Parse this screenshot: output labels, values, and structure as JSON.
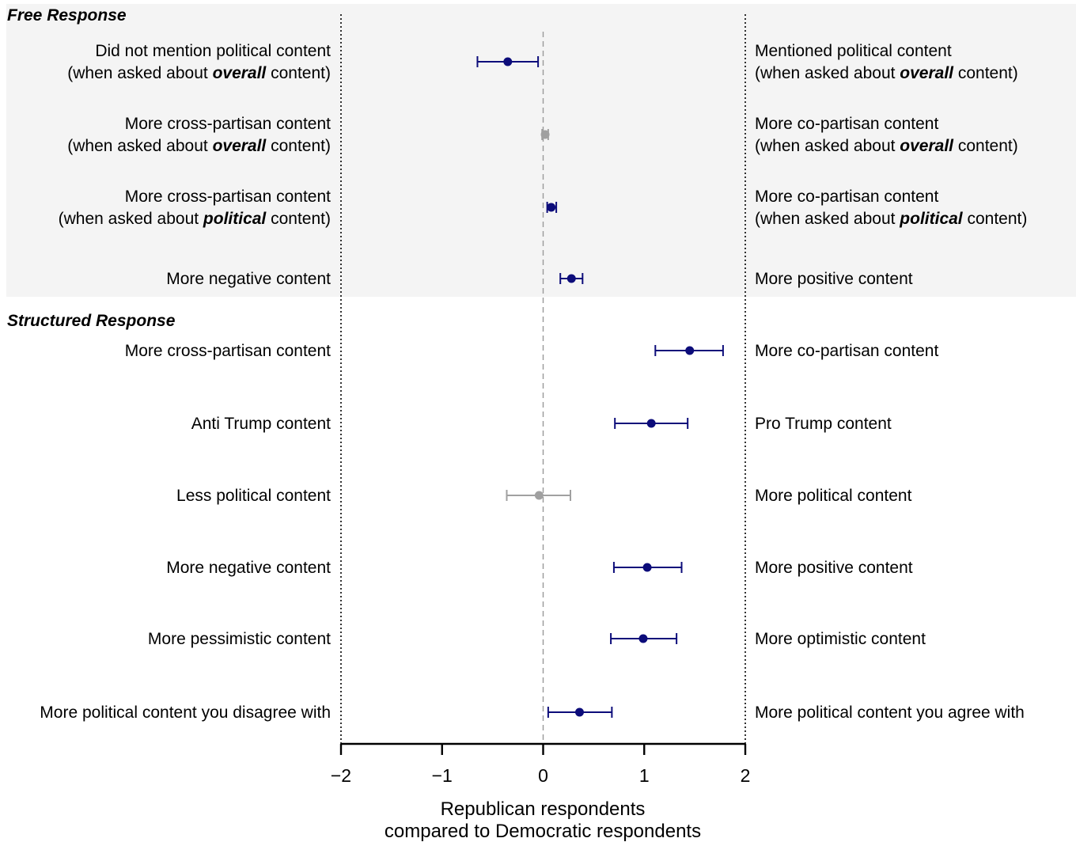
{
  "chart_data": {
    "type": "scatter",
    "xlabel": [
      "Republican respondents",
      "compared to Democratic respondents"
    ],
    "xlim": [
      -2,
      2
    ],
    "x_ticks": [
      -2,
      -1,
      0,
      1,
      2
    ],
    "x_tick_labels": [
      "−2",
      "−1",
      "0",
      "1",
      "2"
    ],
    "reference_line": 0,
    "colors": {
      "significant": "#0c0c7a",
      "not_significant": "#a0a0a0",
      "section_background": "#f4f4f4"
    },
    "sections": [
      {
        "title": "Free Response",
        "shaded": true,
        "items": [
          {
            "left": [
              [
                {
                  "t": "Did not mention political content"
                }
              ],
              [
                {
                  "t": "(when asked about "
                },
                {
                  "t": "overall",
                  "em": true
                },
                {
                  "t": " content)"
                }
              ]
            ],
            "right": [
              [
                {
                  "t": "Mentioned political content"
                }
              ],
              [
                {
                  "t": "(when asked about "
                },
                {
                  "t": "overall",
                  "em": true
                },
                {
                  "t": " content)"
                }
              ]
            ],
            "estimate": -0.35,
            "ci": [
              -0.65,
              -0.05
            ],
            "significant": true
          },
          {
            "left": [
              [
                {
                  "t": "More cross-partisan content"
                }
              ],
              [
                {
                  "t": "(when asked about "
                },
                {
                  "t": "overall",
                  "em": true
                },
                {
                  "t": " content)"
                }
              ]
            ],
            "right": [
              [
                {
                  "t": "More co-partisan content"
                }
              ],
              [
                {
                  "t": "(when asked about "
                },
                {
                  "t": "overall",
                  "em": true
                },
                {
                  "t": " content)"
                }
              ]
            ],
            "estimate": 0.02,
            "ci": [
              -0.01,
              0.05
            ],
            "significant": false
          },
          {
            "left": [
              [
                {
                  "t": "More cross-partisan content"
                }
              ],
              [
                {
                  "t": "(when asked about "
                },
                {
                  "t": "political",
                  "em": true
                },
                {
                  "t": " content)"
                }
              ]
            ],
            "right": [
              [
                {
                  "t": "More co-partisan content"
                }
              ],
              [
                {
                  "t": "(when asked about "
                },
                {
                  "t": "political",
                  "em": true
                },
                {
                  "t": " content)"
                }
              ]
            ],
            "estimate": 0.08,
            "ci": [
              0.04,
              0.13
            ],
            "significant": true
          },
          {
            "left": [
              [
                {
                  "t": "More negative content"
                }
              ]
            ],
            "right": [
              [
                {
                  "t": "More positive content"
                }
              ]
            ],
            "estimate": 0.28,
            "ci": [
              0.17,
              0.39
            ],
            "significant": true
          }
        ]
      },
      {
        "title": "Structured Response",
        "shaded": false,
        "items": [
          {
            "left": [
              [
                {
                  "t": "More cross-partisan content"
                }
              ]
            ],
            "right": [
              [
                {
                  "t": "More co-partisan content"
                }
              ]
            ],
            "estimate": 1.45,
            "ci": [
              1.11,
              1.78
            ],
            "significant": true
          },
          {
            "left": [
              [
                {
                  "t": "Anti Trump content"
                }
              ]
            ],
            "right": [
              [
                {
                  "t": "Pro Trump content"
                }
              ]
            ],
            "estimate": 1.07,
            "ci": [
              0.71,
              1.43
            ],
            "significant": true
          },
          {
            "left": [
              [
                {
                  "t": "Less political content"
                }
              ]
            ],
            "right": [
              [
                {
                  "t": "More political content"
                }
              ]
            ],
            "estimate": -0.04,
            "ci": [
              -0.36,
              0.27
            ],
            "significant": false
          },
          {
            "left": [
              [
                {
                  "t": "More negative content"
                }
              ]
            ],
            "right": [
              [
                {
                  "t": "More positive content"
                }
              ]
            ],
            "estimate": 1.03,
            "ci": [
              0.7,
              1.37
            ],
            "significant": true
          },
          {
            "left": [
              [
                {
                  "t": "More pessimistic content"
                }
              ]
            ],
            "right": [
              [
                {
                  "t": "More optimistic content"
                }
              ]
            ],
            "estimate": 0.99,
            "ci": [
              0.67,
              1.32
            ],
            "significant": true
          },
          {
            "left": [
              [
                {
                  "t": "More political content you disagree with"
                }
              ]
            ],
            "right": [
              [
                {
                  "t": "More political content you agree with"
                }
              ]
            ],
            "estimate": 0.36,
            "ci": [
              0.05,
              0.68
            ],
            "significant": true
          }
        ]
      }
    ]
  }
}
